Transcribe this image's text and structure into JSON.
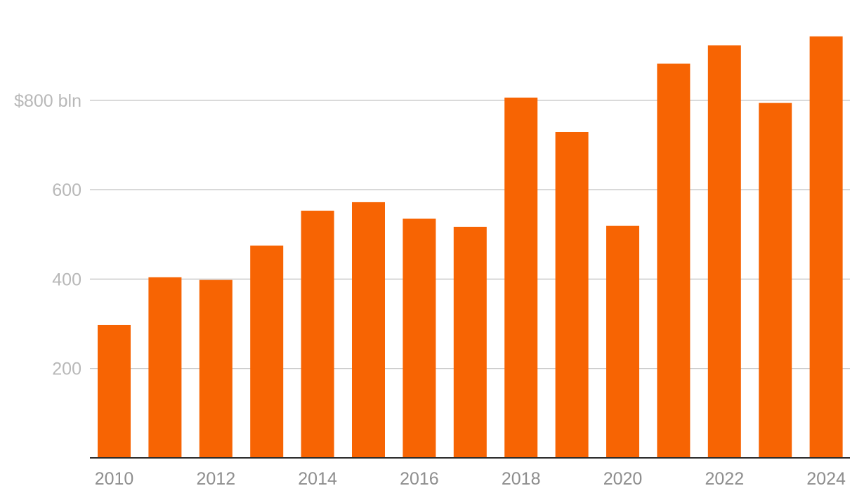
{
  "chart_data": {
    "type": "bar",
    "title": "",
    "xlabel": "",
    "ylabel": "",
    "categories": [
      "2010",
      "2011",
      "2012",
      "2013",
      "2014",
      "2015",
      "2016",
      "2017",
      "2018",
      "2019",
      "2020",
      "2021",
      "2022",
      "2023",
      "2024"
    ],
    "values": [
      297,
      404,
      398,
      475,
      553,
      572,
      535,
      517,
      806,
      729,
      519,
      882,
      923,
      794,
      943
    ],
    "x_tick_labels": [
      "2010",
      "2012",
      "2014",
      "2016",
      "2018",
      "2020",
      "2022",
      "2024"
    ],
    "y_ticks": [
      {
        "value": 200,
        "label": "200"
      },
      {
        "value": 400,
        "label": "400"
      },
      {
        "value": 600,
        "label": "600"
      },
      {
        "value": 800,
        "label": "$800 bln"
      }
    ],
    "ylim": [
      0,
      960
    ],
    "grid": true,
    "legend": "none",
    "colors": {
      "bar": "#f76403",
      "grid": "#c6c6c6",
      "axis": "#2b2b2b"
    }
  }
}
